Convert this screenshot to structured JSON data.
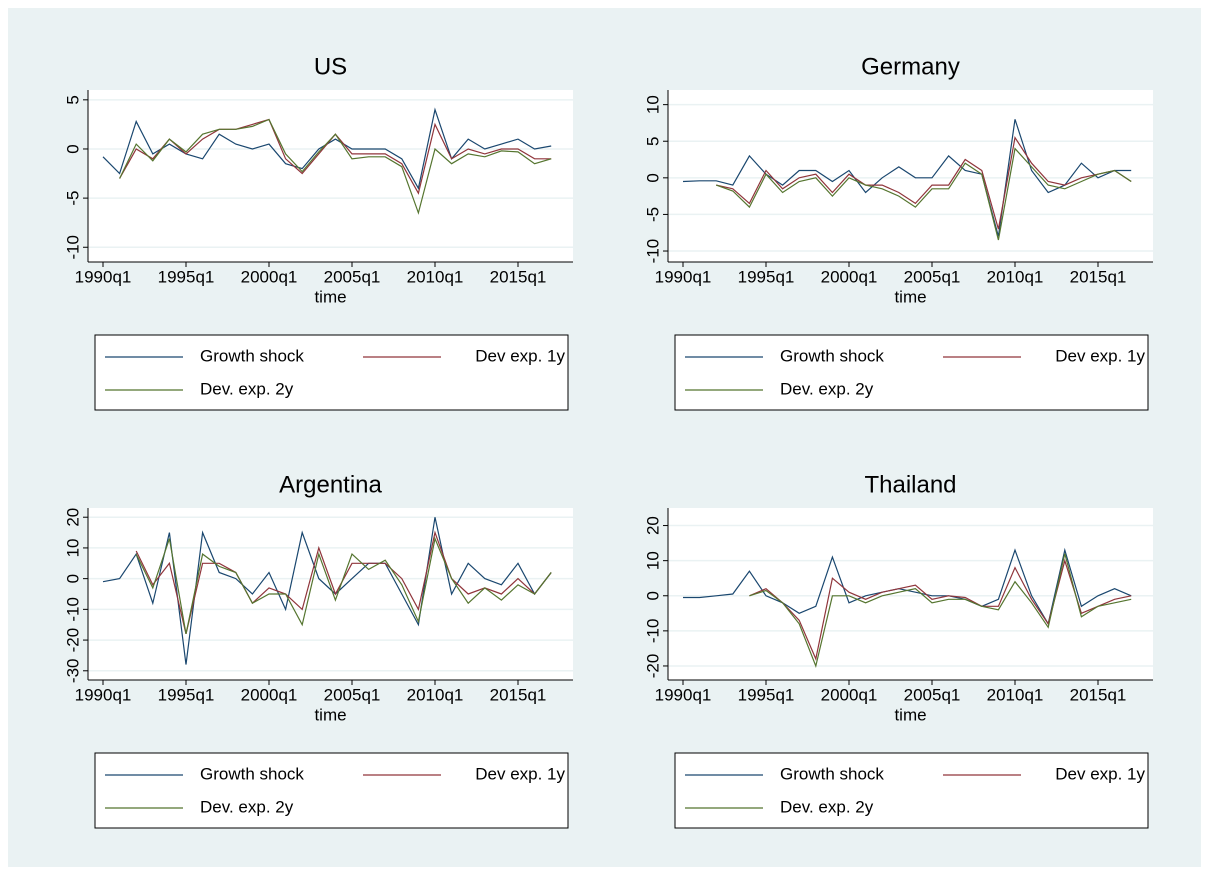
{
  "chart_data": [
    {
      "type": "line",
      "title": "US",
      "x_label": "time",
      "x": [
        "1990q1",
        "1991q1",
        "1992q1",
        "1993q1",
        "1994q1",
        "1995q1",
        "1996q1",
        "1997q1",
        "1998q1",
        "1999q1",
        "2000q1",
        "2001q1",
        "2002q1",
        "2003q1",
        "2004q1",
        "2005q1",
        "2006q1",
        "2007q1",
        "2008q1",
        "2009q1",
        "2010q1",
        "2011q1",
        "2012q1",
        "2013q1",
        "2014q1",
        "2015q1",
        "2016q1",
        "2017q1"
      ],
      "xticks": [
        "1990q1",
        "1995q1",
        "2000q1",
        "2005q1",
        "2010q1",
        "2015q1"
      ],
      "ylim": [
        -11.5,
        6
      ],
      "yticks": [
        -10,
        -5,
        0,
        5
      ],
      "grid": true,
      "series": [
        {
          "name": "Growth shock",
          "color": "#1a476f",
          "values": [
            -0.8,
            -2.5,
            2.8,
            -0.5,
            0.5,
            -0.5,
            -1,
            1.5,
            0.5,
            0,
            0.5,
            -1.5,
            -2,
            0,
            1,
            0,
            0,
            0,
            -1,
            -4,
            4,
            -1,
            1,
            0,
            0.5,
            1,
            0,
            0.3
          ]
        },
        {
          "name": "Dev exp. 1y",
          "color": "#90353b",
          "values": [
            null,
            -3,
            0,
            -1,
            1,
            -0.5,
            1,
            2,
            2,
            2.5,
            3,
            -1,
            -2.5,
            -0.5,
            1.5,
            -0.5,
            -0.5,
            -0.5,
            -1.5,
            -4.5,
            2.5,
            -1,
            0,
            -0.5,
            0,
            0,
            -1,
            -1
          ]
        },
        {
          "name": "Dev. exp. 2y",
          "color": "#55752f",
          "values": [
            null,
            -3,
            0.5,
            -1.2,
            1,
            -0.3,
            1.5,
            2,
            2,
            2.3,
            3,
            -0.5,
            -2.3,
            -0.3,
            1.5,
            -1,
            -0.8,
            -0.8,
            -1.8,
            -6.5,
            0,
            -1.5,
            -0.5,
            -0.8,
            -0.2,
            -0.3,
            -1.5,
            -1
          ]
        }
      ]
    },
    {
      "type": "line",
      "title": "Germany",
      "x_label": "time",
      "x": [
        "1990q1",
        "1991q1",
        "1992q1",
        "1993q1",
        "1994q1",
        "1995q1",
        "1996q1",
        "1997q1",
        "1998q1",
        "1999q1",
        "2000q1",
        "2001q1",
        "2002q1",
        "2003q1",
        "2004q1",
        "2005q1",
        "2006q1",
        "2007q1",
        "2008q1",
        "2009q1",
        "2010q1",
        "2011q1",
        "2012q1",
        "2013q1",
        "2014q1",
        "2015q1",
        "2016q1",
        "2017q1"
      ],
      "xticks": [
        "1990q1",
        "1995q1",
        "2000q1",
        "2005q1",
        "2010q1",
        "2015q1"
      ],
      "ylim": [
        -11.5,
        12
      ],
      "yticks": [
        -10,
        -5,
        0,
        5,
        10
      ],
      "grid": true,
      "series": [
        {
          "name": "Growth shock",
          "color": "#1a476f",
          "values": [
            -0.5,
            -0.4,
            -0.4,
            -1,
            3,
            0.5,
            -1,
            1,
            1,
            -0.5,
            1,
            -2,
            0,
            1.5,
            0,
            0,
            3,
            1,
            0.5,
            -8,
            8,
            1,
            -2,
            -1,
            2,
            0,
            1,
            1
          ]
        },
        {
          "name": "Dev exp. 1y",
          "color": "#90353b",
          "values": [
            null,
            null,
            -1,
            -1.5,
            -3.5,
            1,
            -1.5,
            0,
            0.5,
            -2,
            0.5,
            -1,
            -1,
            -2,
            -3.5,
            -1,
            -1,
            2.5,
            1,
            -7,
            5.5,
            2,
            -0.5,
            -1,
            0,
            0.5,
            1,
            -0.5
          ]
        },
        {
          "name": "Dev. exp. 2y",
          "color": "#55752f",
          "values": [
            null,
            null,
            -1,
            -1.8,
            -4,
            0.5,
            -2,
            -0.5,
            0,
            -2.5,
            0,
            -1,
            -1.5,
            -2.5,
            -4,
            -1.5,
            -1.5,
            2,
            0.5,
            -8.5,
            4,
            1.5,
            -1,
            -1.5,
            -0.5,
            0.5,
            1,
            -0.5
          ]
        }
      ]
    },
    {
      "type": "line",
      "title": "Argentina",
      "x_label": "time",
      "x": [
        "1990q1",
        "1991q1",
        "1992q1",
        "1993q1",
        "1994q1",
        "1995q1",
        "1996q1",
        "1997q1",
        "1998q1",
        "1999q1",
        "2000q1",
        "2001q1",
        "2002q1",
        "2003q1",
        "2004q1",
        "2005q1",
        "2006q1",
        "2007q1",
        "2008q1",
        "2009q1",
        "2010q1",
        "2011q1",
        "2012q1",
        "2013q1",
        "2014q1",
        "2015q1",
        "2016q1",
        "2017q1"
      ],
      "xticks": [
        "1990q1",
        "1995q1",
        "2000q1",
        "2005q1",
        "2010q1",
        "2015q1"
      ],
      "ylim": [
        -33,
        23
      ],
      "yticks": [
        -30,
        -20,
        -10,
        0,
        10,
        20
      ],
      "grid": true,
      "series": [
        {
          "name": "Growth shock",
          "color": "#1a476f",
          "values": [
            -1,
            0,
            8,
            -8,
            15,
            -28,
            15,
            2,
            0,
            -5,
            2,
            -10,
            15,
            0,
            -5,
            0,
            5,
            5,
            -5,
            -15,
            20,
            -5,
            5,
            0,
            -2,
            5,
            -5,
            2
          ]
        },
        {
          "name": "Dev exp. 1y",
          "color": "#90353b",
          "values": [
            null,
            null,
            9,
            -2,
            5,
            -18,
            5,
            5,
            2,
            -8,
            -3,
            -5,
            -10,
            10,
            -5,
            5,
            5,
            5,
            0,
            -10,
            15,
            0,
            -5,
            -3,
            -5,
            0,
            -5,
            2
          ]
        },
        {
          "name": "Dev. exp. 2y",
          "color": "#55752f",
          "values": [
            null,
            null,
            8,
            -3,
            13,
            -18,
            8,
            4,
            2,
            -8,
            -5,
            -5,
            -15,
            8,
            -7,
            8,
            3,
            6,
            -2,
            -14,
            13,
            0,
            -8,
            -3,
            -7,
            -2,
            -5,
            2
          ]
        }
      ]
    },
    {
      "type": "line",
      "title": "Thailand",
      "x_label": "time",
      "x": [
        "1990q1",
        "1991q1",
        "1992q1",
        "1993q1",
        "1994q1",
        "1995q1",
        "1996q1",
        "1997q1",
        "1998q1",
        "1999q1",
        "2000q1",
        "2001q1",
        "2002q1",
        "2003q1",
        "2004q1",
        "2005q1",
        "2006q1",
        "2007q1",
        "2008q1",
        "2009q1",
        "2010q1",
        "2011q1",
        "2012q1",
        "2013q1",
        "2014q1",
        "2015q1",
        "2016q1",
        "2017q1"
      ],
      "xticks": [
        "1990q1",
        "1995q1",
        "2000q1",
        "2005q1",
        "2010q1",
        "2015q1"
      ],
      "ylim": [
        -24,
        25
      ],
      "yticks": [
        -20,
        -10,
        0,
        10,
        20
      ],
      "grid": true,
      "series": [
        {
          "name": "Growth shock",
          "color": "#1a476f",
          "values": [
            -0.5,
            -0.5,
            0,
            0.5,
            7,
            0,
            -2,
            -5,
            -3,
            11,
            -2,
            0,
            1,
            2,
            1,
            0,
            0,
            -1,
            -3,
            -1,
            13,
            0,
            -8,
            13,
            -3,
            0,
            2,
            0
          ]
        },
        {
          "name": "Dev exp. 1y",
          "color": "#90353b",
          "values": [
            null,
            null,
            null,
            null,
            0,
            2,
            -2,
            -7,
            -18,
            5,
            1,
            -1,
            1,
            2,
            3,
            -1,
            0,
            -0.5,
            -3,
            -3,
            8,
            -1,
            -8,
            10,
            -5,
            -3,
            -1,
            0
          ]
        },
        {
          "name": "Dev. exp. 2y",
          "color": "#55752f",
          "values": [
            null,
            null,
            null,
            null,
            0,
            1.5,
            -2,
            -8,
            -20,
            0,
            0,
            -2,
            0,
            1,
            2,
            -2,
            -1,
            -1,
            -3,
            -4,
            4,
            -2,
            -9,
            12,
            -6,
            -3,
            -2,
            -1
          ]
        }
      ]
    }
  ]
}
